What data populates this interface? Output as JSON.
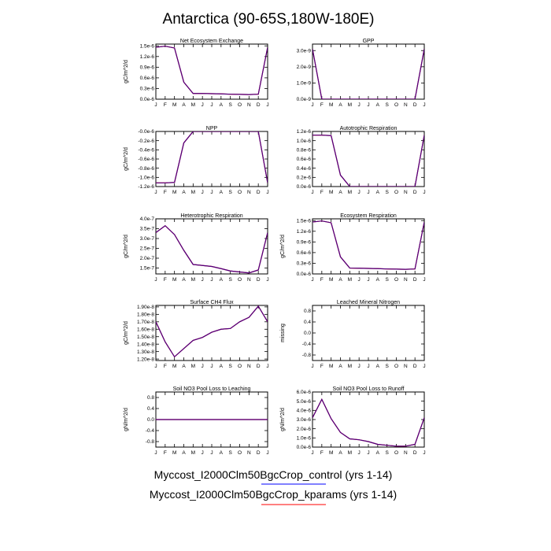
{
  "title": "Antarctica (90-65S,180W-180E)",
  "colors": {
    "control": "#0000ff",
    "kparams": "#ff0000",
    "overlap": "#4b0082",
    "axis": "#000000"
  },
  "legend": [
    {
      "label": "Myccost_I2000Clm50BgcCrop_control (yrs 1-14)",
      "color": "#0000ff"
    },
    {
      "label": "Myccost_I2000Clm50BgcCrop_kparams (yrs 1-14)",
      "color": "#ff0000"
    }
  ],
  "months": [
    "J",
    "F",
    "M",
    "A",
    "M",
    "J",
    "J",
    "A",
    "S",
    "O",
    "N",
    "D",
    "J"
  ],
  "chart_data": [
    {
      "type": "line",
      "title": "Net Ecosystem Exchange",
      "ylabel": "gC/m^2/d",
      "yticks": [
        0.0,
        3e-07,
        6e-07,
        9e-07,
        1.2e-06,
        1.5e-06
      ],
      "ytick_labels": [
        "0.0e-6",
        "0.3e-6",
        "0.6e-6",
        "0.9e-6",
        "1.2e-6",
        "1.5e-6"
      ],
      "ylim": [
        0,
        1.55e-06
      ],
      "series": [
        {
          "values": [
            1.46e-06,
            1.49e-06,
            1.44e-06,
            4.8e-07,
            1.6e-07,
            1.6e-07,
            1.55e-07,
            1.5e-07,
            1.4e-07,
            1.35e-07,
            1.3e-07,
            1.4e-07,
            1.46e-06
          ]
        },
        {
          "values": [
            1.46e-06,
            1.49e-06,
            1.44e-06,
            4.8e-07,
            1.6e-07,
            1.6e-07,
            1.55e-07,
            1.5e-07,
            1.4e-07,
            1.35e-07,
            1.3e-07,
            1.4e-07,
            1.46e-06
          ]
        }
      ]
    },
    {
      "type": "line",
      "title": "GPP",
      "ylabel": "",
      "yticks": [
        0.0,
        1e-09,
        2e-09,
        3e-09
      ],
      "ytick_labels": [
        "0.0e-9",
        "1.0e-9",
        "2.0e-9",
        "3.0e-9"
      ],
      "ylim": [
        0,
        3.4e-09
      ],
      "series": [
        {
          "values": [
            3.1e-09,
            0,
            0,
            0,
            0,
            0,
            0,
            0,
            0,
            0,
            0,
            0,
            3.1e-09
          ]
        },
        {
          "values": [
            3.1e-09,
            0,
            0,
            0,
            0,
            0,
            0,
            0,
            0,
            0,
            0,
            0,
            3.1e-09
          ]
        }
      ]
    },
    {
      "type": "line",
      "title": "NPP",
      "ylabel": "gC/m^2/d",
      "yticks": [
        0.0,
        -2e-07,
        -4e-07,
        -6e-07,
        -8e-07,
        -1e-06,
        -1.2e-06
      ],
      "ytick_labels": [
        "-0.0e-6",
        "-0.2e-6",
        "-0.4e-6",
        "-0.6e-6",
        "-0.8e-6",
        "-1.0e-6",
        "-1.2e-6"
      ],
      "ylim": [
        -1.2e-06,
        0
      ],
      "series": [
        {
          "values": [
            -1.12e-06,
            -1.12e-06,
            -1.11e-06,
            -2.5e-07,
            0,
            0,
            0,
            0,
            0,
            0,
            0,
            0,
            -1.12e-06
          ]
        },
        {
          "values": [
            -1.12e-06,
            -1.12e-06,
            -1.11e-06,
            -2.5e-07,
            0,
            0,
            0,
            0,
            0,
            0,
            0,
            0,
            -1.12e-06
          ]
        }
      ]
    },
    {
      "type": "line",
      "title": "Autotrophic Respiration",
      "ylabel": "",
      "yticks": [
        0.0,
        2e-07,
        4e-07,
        6e-07,
        8e-07,
        1e-06,
        1.2e-06
      ],
      "ytick_labels": [
        "0.0e-6",
        "0.2e-6",
        "0.4e-6",
        "0.6e-6",
        "0.8e-6",
        "1.0e-6",
        "1.2e-6"
      ],
      "ylim": [
        0,
        1.2e-06
      ],
      "series": [
        {
          "values": [
            1.12e-06,
            1.12e-06,
            1.11e-06,
            2.5e-07,
            0,
            0,
            0,
            0,
            0,
            0,
            0,
            0,
            1.12e-06
          ]
        },
        {
          "values": [
            1.12e-06,
            1.12e-06,
            1.11e-06,
            2.5e-07,
            0,
            0,
            0,
            0,
            0,
            0,
            0,
            0,
            1.12e-06
          ]
        }
      ]
    },
    {
      "type": "line",
      "title": "Heterotrophic Respiration",
      "ylabel": "gC/m^2/d",
      "yticks": [
        1.5e-07,
        2e-07,
        2.5e-07,
        3e-07,
        3.5e-07,
        4e-07
      ],
      "ytick_labels": [
        "1.5e-7",
        "2.0e-7",
        "2.5e-7",
        "3.0e-7",
        "3.5e-7",
        "4.0e-7"
      ],
      "ylim": [
        1.2e-07,
        4e-07
      ],
      "series": [
        {
          "values": [
            3.3e-07,
            3.65e-07,
            3.2e-07,
            2.4e-07,
            1.68e-07,
            1.63e-07,
            1.58e-07,
            1.47e-07,
            1.35e-07,
            1.3e-07,
            1.25e-07,
            1.4e-07,
            3.3e-07
          ]
        },
        {
          "values": [
            3.3e-07,
            3.65e-07,
            3.2e-07,
            2.4e-07,
            1.68e-07,
            1.63e-07,
            1.58e-07,
            1.47e-07,
            1.35e-07,
            1.3e-07,
            1.25e-07,
            1.4e-07,
            3.3e-07
          ]
        }
      ]
    },
    {
      "type": "line",
      "title": "Ecosystem Respiration",
      "ylabel": "gC/m^2/d",
      "yticks": [
        0.0,
        3e-07,
        6e-07,
        9e-07,
        1.2e-06,
        1.5e-06
      ],
      "ytick_labels": [
        "0.0e-6",
        "0.3e-6",
        "0.6e-6",
        "0.9e-6",
        "1.2e-6",
        "1.5e-6"
      ],
      "ylim": [
        0,
        1.55e-06
      ],
      "series": [
        {
          "values": [
            1.46e-06,
            1.49e-06,
            1.44e-06,
            4.8e-07,
            1.65e-07,
            1.6e-07,
            1.55e-07,
            1.5e-07,
            1.4e-07,
            1.35e-07,
            1.3e-07,
            1.4e-07,
            1.46e-06
          ]
        },
        {
          "values": [
            1.46e-06,
            1.49e-06,
            1.44e-06,
            4.8e-07,
            1.65e-07,
            1.6e-07,
            1.55e-07,
            1.5e-07,
            1.4e-07,
            1.35e-07,
            1.3e-07,
            1.4e-07,
            1.46e-06
          ]
        }
      ]
    },
    {
      "type": "line",
      "title": "Surface CH4 Flux",
      "ylabel": "gC/m^2/d",
      "yticks": [
        1.2e-08,
        1.3e-08,
        1.4e-08,
        1.5e-08,
        1.6e-08,
        1.7e-08,
        1.8e-08,
        1.9e-08
      ],
      "ytick_labels": [
        "1.20e-8",
        "1.30e-8",
        "1.40e-8",
        "1.50e-8",
        "1.60e-8",
        "1.70e-8",
        "1.80e-8",
        "1.90e-8"
      ],
      "ylim": [
        1.18e-08,
        1.92e-08
      ],
      "series": [
        {
          "values": [
            1.7e-08,
            1.43e-08,
            1.23e-08,
            1.34e-08,
            1.45e-08,
            1.49e-08,
            1.56e-08,
            1.6e-08,
            1.61e-08,
            1.7e-08,
            1.76e-08,
            1.91e-08,
            1.7e-08
          ]
        },
        {
          "values": [
            1.7e-08,
            1.43e-08,
            1.23e-08,
            1.34e-08,
            1.45e-08,
            1.49e-08,
            1.56e-08,
            1.6e-08,
            1.61e-08,
            1.7e-08,
            1.76e-08,
            1.91e-08,
            1.7e-08
          ]
        }
      ]
    },
    {
      "type": "line",
      "title": "Leached Mineral Nitrogen",
      "ylabel": "missing",
      "yticks": [
        -0.8,
        -0.4,
        0.0,
        0.4,
        0.8
      ],
      "ytick_labels": [
        "-0.8",
        "-0.4",
        "0.0",
        "0.4",
        "0.8"
      ],
      "ylim": [
        -1.0,
        1.0
      ],
      "series": []
    },
    {
      "type": "line",
      "title": "Soil NO3 Pool Loss to Leaching",
      "ylabel": "gN/m^2/d",
      "yticks": [
        -0.8,
        -0.4,
        0.0,
        0.4,
        0.8
      ],
      "ytick_labels": [
        "-0.8",
        "-0.4",
        "0.0",
        "0.4",
        "0.8"
      ],
      "ylim": [
        -1.0,
        1.0
      ],
      "series": [
        {
          "values": [
            0,
            0,
            0,
            0,
            0,
            0,
            0,
            0,
            0,
            0,
            0,
            0,
            0
          ]
        },
        {
          "values": [
            0,
            0,
            0,
            0,
            0,
            0,
            0,
            0,
            0,
            0,
            0,
            0,
            0
          ]
        }
      ]
    },
    {
      "type": "line",
      "title": "Soil NO3 Pool Loss to Runoff",
      "ylabel": "gN/m^2/d",
      "yticks": [
        0.0,
        1e-06,
        2e-06,
        3e-06,
        4e-06,
        5e-06,
        6e-06
      ],
      "ytick_labels": [
        "0.0e-6",
        "1.0e-6",
        "2.0e-6",
        "3.0e-6",
        "4.0e-6",
        "5.0e-6",
        "6.0e-6"
      ],
      "ylim": [
        0,
        6e-06
      ],
      "series": [
        {
          "values": [
            3.2e-06,
            5.2e-06,
            3.1e-06,
            1.6e-06,
            9e-07,
            8e-07,
            6e-07,
            3e-07,
            2e-07,
            1e-07,
            1e-07,
            3e-07,
            3.2e-06
          ]
        },
        {
          "values": [
            3.2e-06,
            5.2e-06,
            3.1e-06,
            1.6e-06,
            9e-07,
            8e-07,
            6e-07,
            3e-07,
            2e-07,
            1e-07,
            1e-07,
            3e-07,
            3.2e-06
          ]
        }
      ]
    }
  ]
}
